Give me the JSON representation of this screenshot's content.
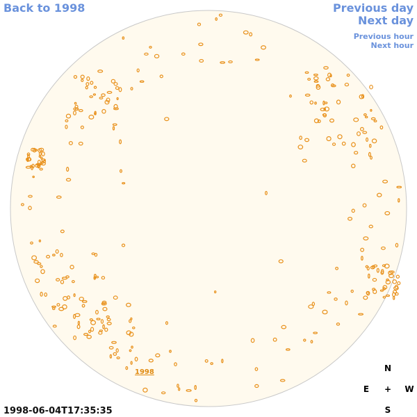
{
  "nav": {
    "back": "Back to 1998",
    "previous_day": "Previous day",
    "next_day": "Next day",
    "previous_hour": "Previous hour",
    "next_hour": "Next hour"
  },
  "disk_label": "1998",
  "compass": {
    "north": "N",
    "east": "E",
    "center": "+",
    "west": "W",
    "south": "S"
  },
  "timestamp": "1998-06-04T17:35:35"
}
